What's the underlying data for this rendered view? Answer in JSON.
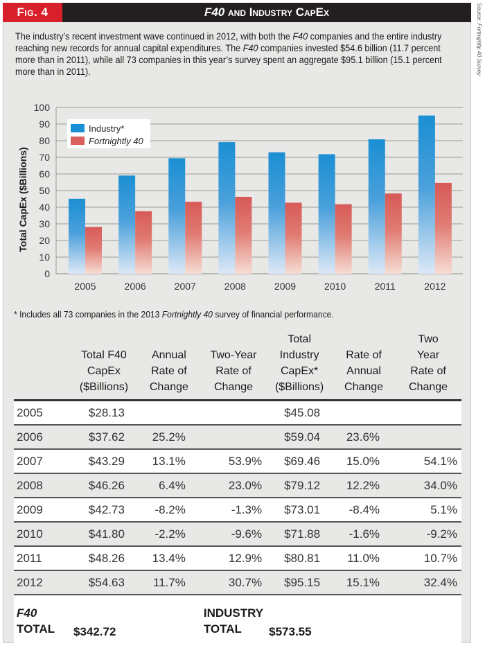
{
  "header": {
    "fig_label": "Fig. 4",
    "title_italic": "F40",
    "title_rest": " and Industry CapEx"
  },
  "source_note": "Source: Fortnightly 40 Survey",
  "intro": {
    "p1": "The industry’s recent investment wave continued in 2012, with both the ",
    "i1": "F40",
    "p2": " companies and the entire industry reaching new records for annual capital expenditures. The ",
    "i2": "F40",
    "p3": " companies invested $54.6 billion (11.7 percent more than in 2011), while all 73 companies in this year’s survey spent an aggregate $95.1 billion (15.1 percent more than in 2011)."
  },
  "colors": {
    "industry": "#1b8fd3",
    "f40": "#d9605c",
    "fig_red": "#d7202b",
    "header_black": "#231f20",
    "panel_bg": "#e8e8e6"
  },
  "chart_data": {
    "type": "bar",
    "title": "F40 and Industry CapEx",
    "xlabel": "",
    "ylabel": "Total CapEx ($Billions)",
    "ylim": [
      0,
      100
    ],
    "yticks": [
      0,
      10,
      20,
      30,
      40,
      50,
      60,
      70,
      80,
      90,
      100
    ],
    "grid": true,
    "legend_position": "top-left",
    "categories": [
      "2005",
      "2006",
      "2007",
      "2008",
      "2009",
      "2010",
      "2011",
      "2012"
    ],
    "series": [
      {
        "name": "Industry*",
        "italic": false,
        "values": [
          45.08,
          59.04,
          69.46,
          79.12,
          73.01,
          71.88,
          80.81,
          95.15
        ]
      },
      {
        "name": "Fortnightly 40",
        "italic": true,
        "values": [
          28.13,
          37.62,
          43.29,
          46.26,
          42.73,
          41.8,
          48.26,
          54.63
        ]
      }
    ]
  },
  "footnote": {
    "p1": "* Includes all 73 companies in the 2013 ",
    "i1": "Fortnightly 40",
    "p2": " survey of financial performance."
  },
  "table": {
    "headers": [
      [
        ""
      ],
      [
        "Total F40",
        "CapEx",
        "($Billions)"
      ],
      [
        "Annual",
        "Rate of",
        "Change"
      ],
      [
        "Two-Year",
        "Rate of",
        "Change"
      ],
      [
        "Total",
        "Industry",
        "CapEx*",
        "($Billions)"
      ],
      [
        "Rate of",
        "Annual",
        "Change"
      ],
      [
        "Two",
        "Year",
        "Rate of",
        "Change"
      ]
    ],
    "rows": [
      [
        "2005",
        "$28.13",
        "",
        "",
        "$45.08",
        "",
        ""
      ],
      [
        "2006",
        "$37.62",
        "25.2%",
        "",
        "$59.04",
        "23.6%",
        ""
      ],
      [
        "2007",
        "$43.29",
        "13.1%",
        "53.9%",
        "$69.46",
        "15.0%",
        "54.1%"
      ],
      [
        "2008",
        "$46.26",
        "6.4%",
        "23.0%",
        "$79.12",
        "12.2%",
        "34.0%"
      ],
      [
        "2009",
        "$42.73",
        "-8.2%",
        "-1.3%",
        "$73.01",
        "-8.4%",
        "5.1%"
      ],
      [
        "2010",
        "$41.80",
        "-2.2%",
        "-9.6%",
        "$71.88",
        "-1.6%",
        "-9.2%"
      ],
      [
        "2011",
        "$48.26",
        "13.4%",
        "12.9%",
        "$80.81",
        "11.0%",
        "10.7%"
      ],
      [
        "2012",
        "$54.63",
        "11.7%",
        "30.7%",
        "$95.15",
        "15.1%",
        "32.4%"
      ]
    ],
    "totals": {
      "f40_label_line1": "F40",
      "f40_label_line2": "TOTAL",
      "f40_value": "$342.72",
      "industry_label_line1": "INDUSTRY",
      "industry_label_line2": "TOTAL",
      "industry_value": "$573.55"
    }
  }
}
